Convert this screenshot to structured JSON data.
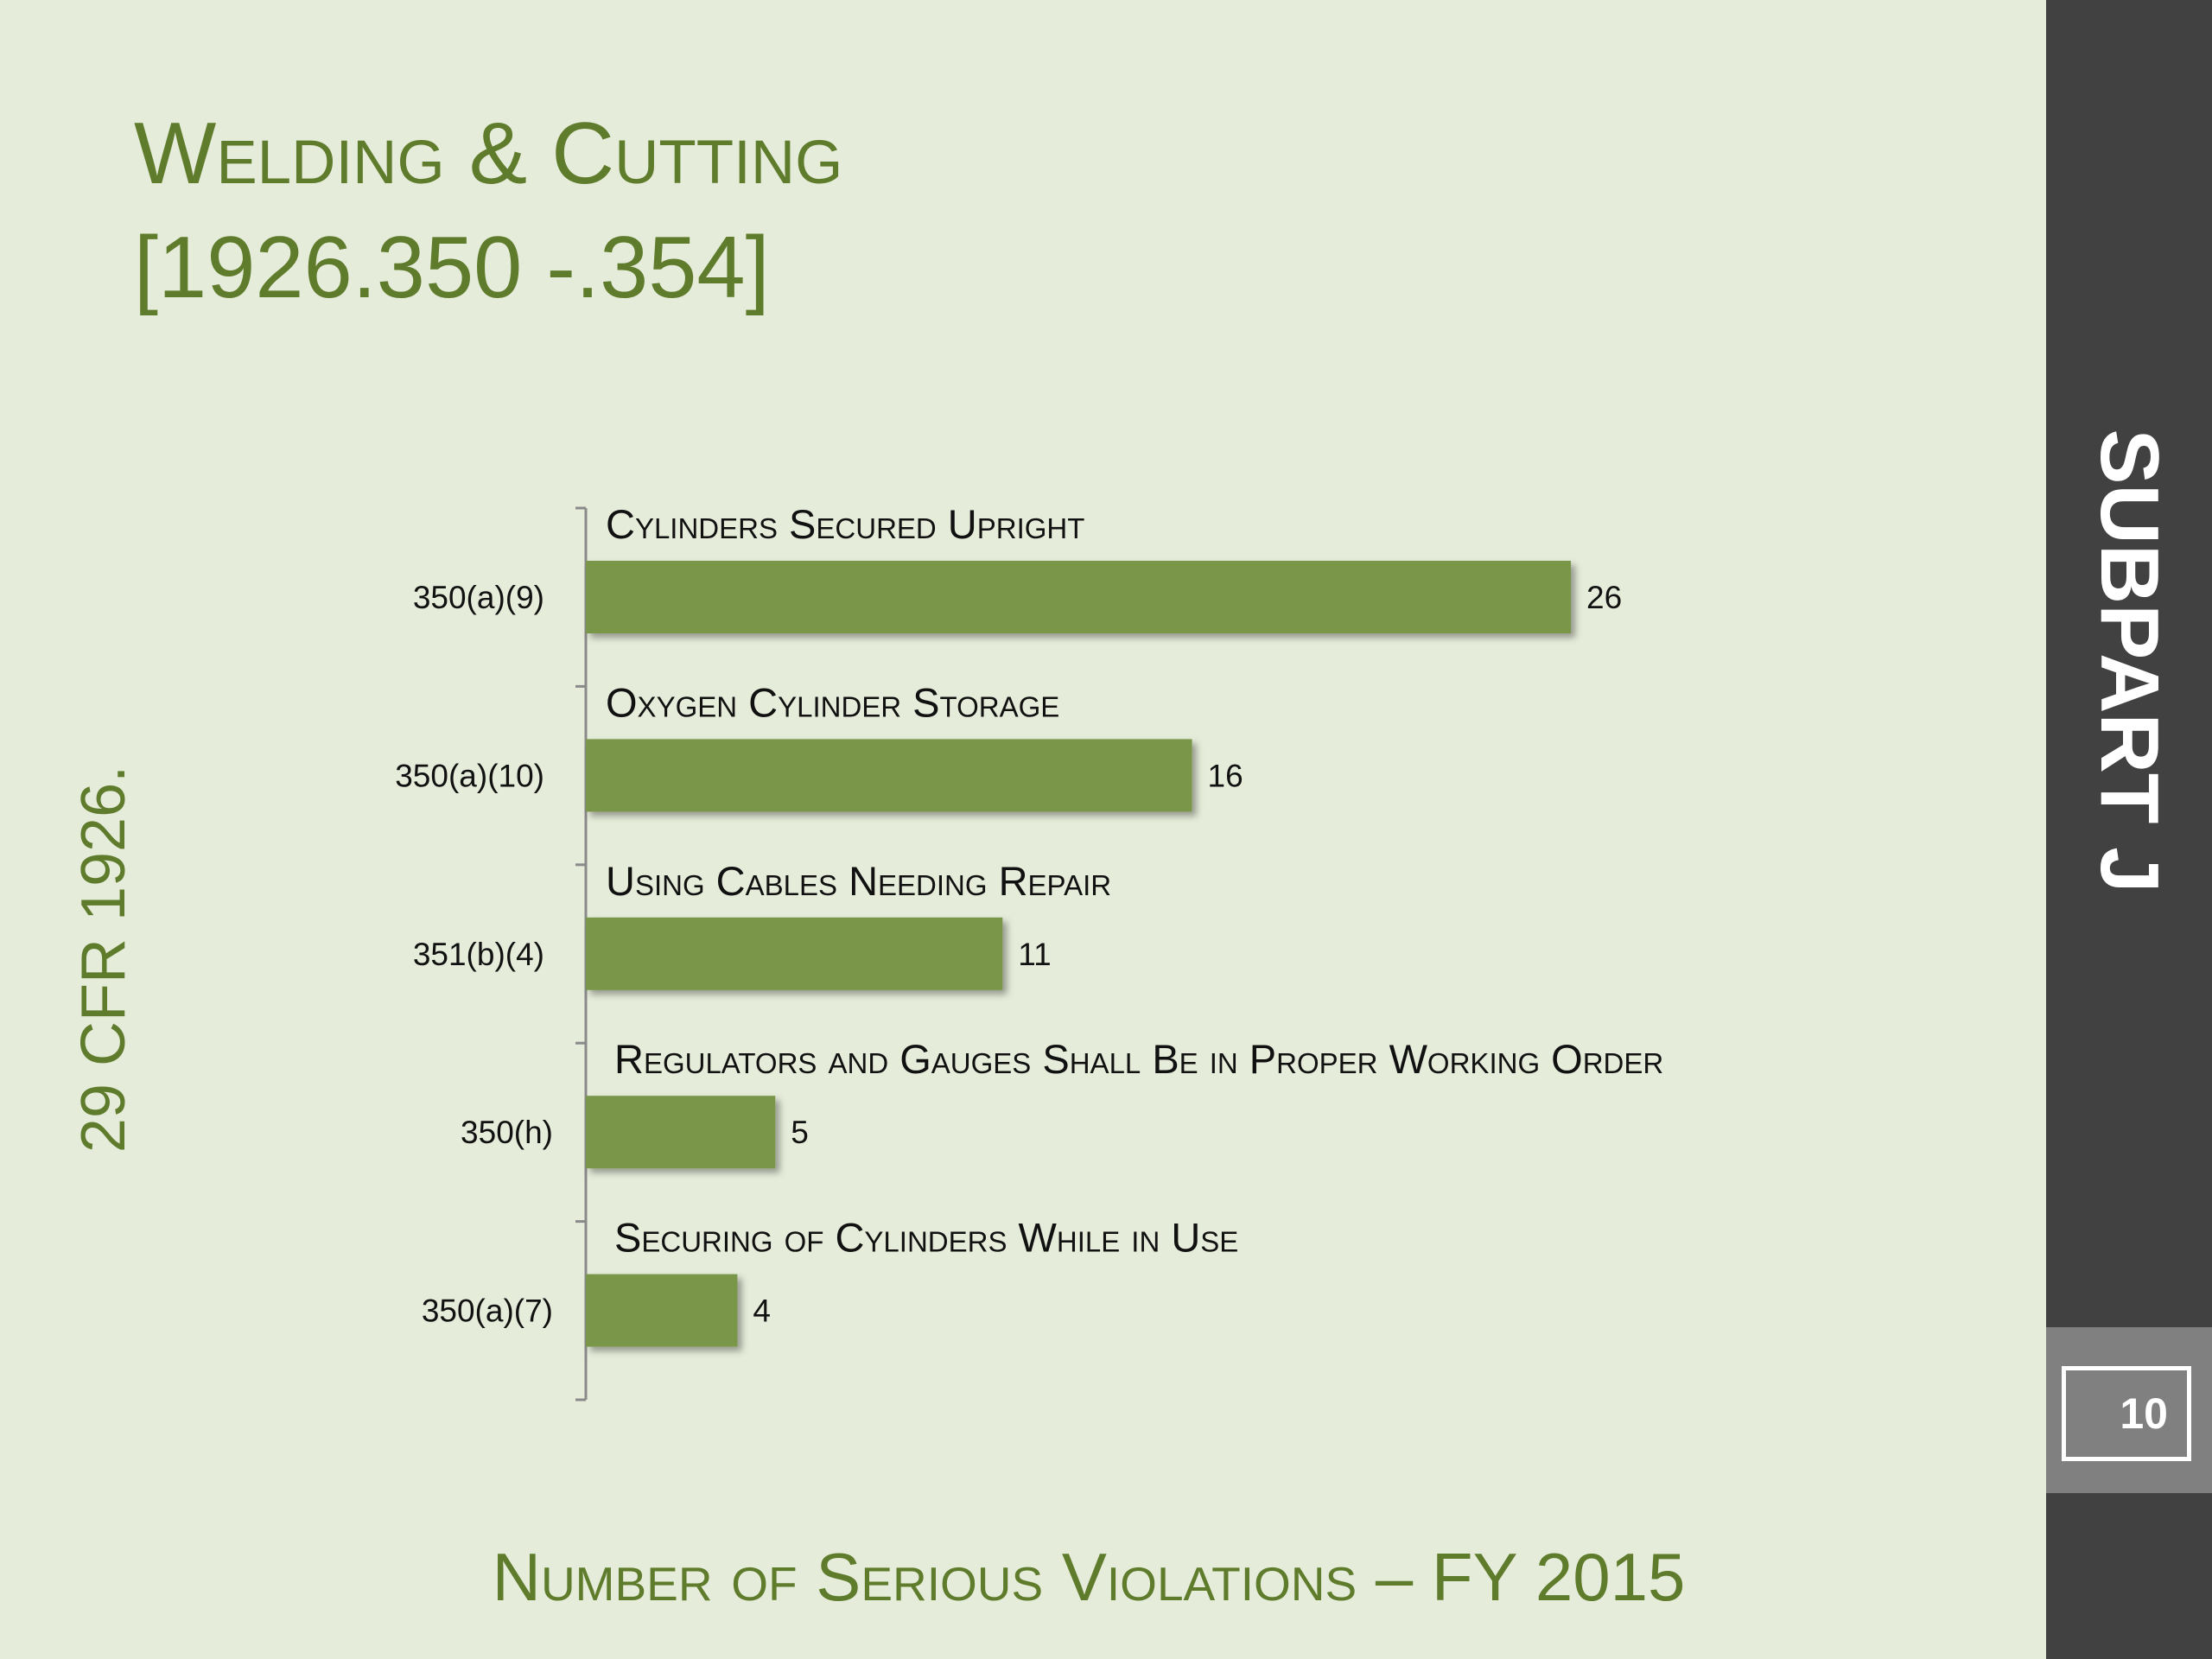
{
  "slide": {
    "title_line1": "Welding & Cutting",
    "title_line2": "[1926.350 -.354]",
    "side_label": "29 CFR 1926.",
    "right_panel_label": "SUBPART J",
    "page_number": "10"
  },
  "chart_data": {
    "type": "bar",
    "orientation": "horizontal",
    "title": "Number of Serious Violations – FY 2015",
    "categories": [
      "350(a)(9)",
      "350(a)(10)",
      "351(b)(4)",
      "350(h)",
      "350(a)(7)"
    ],
    "values": [
      26,
      16,
      11,
      5,
      4
    ],
    "annotations": [
      "Cylinders Secured Upright",
      "Oxygen Cylinder Storage",
      "Using Cables Needing Repair",
      "Regulators and Gauges Shall Be in Proper Working Order",
      "Securing of Cylinders While in Use"
    ],
    "bar_color": "#7a964a",
    "grid": false,
    "legend": "none"
  }
}
